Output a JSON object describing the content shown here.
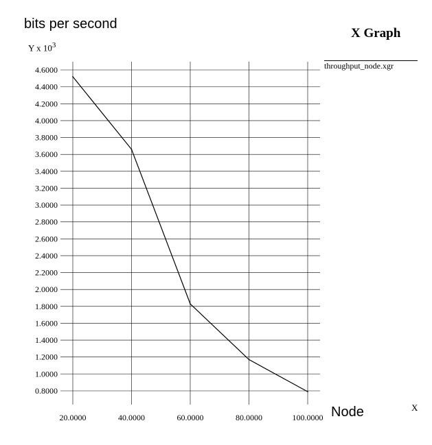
{
  "chart_data": {
    "type": "line",
    "title": "X Graph",
    "ylabel": "bits per second",
    "y_multiplier": "Y x 10",
    "y_multiplier_exp": "3",
    "xlabel": "Node",
    "x_unit": "X",
    "xlim": [
      20,
      100
    ],
    "ylim": [
      0.8,
      4.6
    ],
    "x_ticks": [
      "20.0000",
      "40.0000",
      "60.0000",
      "80.0000",
      "100.0000"
    ],
    "y_ticks": [
      "0.8000",
      "1.0000",
      "1.2000",
      "1.4000",
      "1.6000",
      "1.8000",
      "2.0000",
      "2.2000",
      "2.4000",
      "2.6000",
      "2.8000",
      "3.0000",
      "3.2000",
      "3.4000",
      "3.6000",
      "3.8000",
      "4.0000",
      "4.2000",
      "4.4000",
      "4.6000"
    ],
    "grid": true,
    "legend_position": "top-right",
    "series": [
      {
        "name": "throughput_node.xgr",
        "color": "#000000",
        "x": [
          20,
          40,
          60,
          80,
          100
        ],
        "y": [
          4.52,
          3.66,
          1.83,
          1.17,
          0.79
        ]
      }
    ]
  }
}
